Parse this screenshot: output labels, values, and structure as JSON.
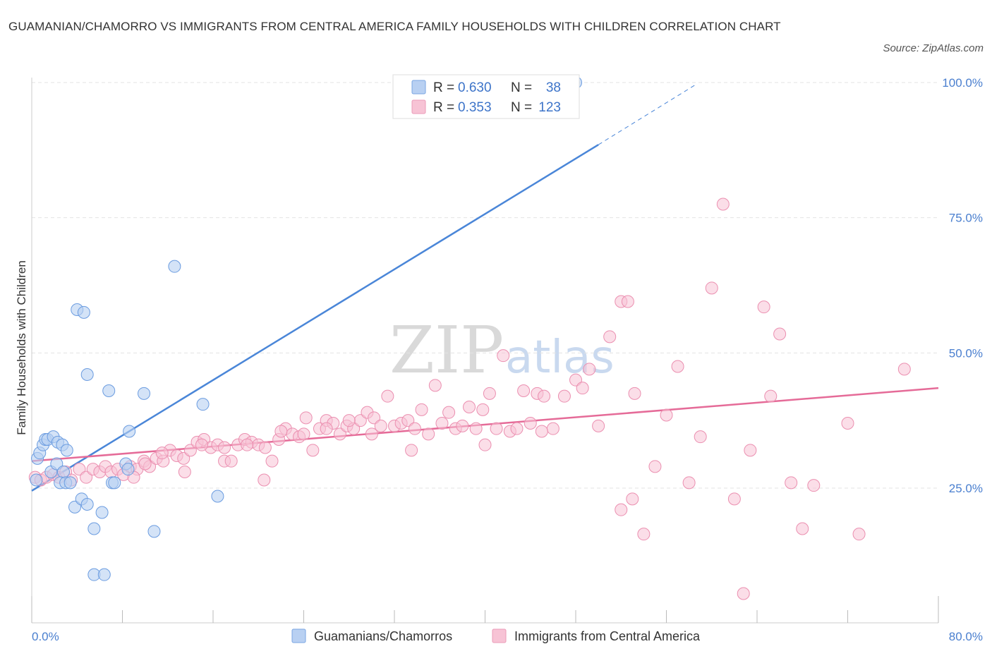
{
  "title": "GUAMANIAN/CHAMORRO VS IMMIGRANTS FROM CENTRAL AMERICA FAMILY HOUSEHOLDS WITH CHILDREN CORRELATION CHART",
  "source": "Source: ZipAtlas.com",
  "watermark": {
    "zip": "ZIP",
    "atlas": "atlas"
  },
  "colors": {
    "blue": "#4a86d8",
    "blue_fill": "#b8d0f2",
    "pink": "#e56b98",
    "pink_fill": "#f7c3d5",
    "axis_text": "#4a7fcf",
    "grid": "#e3e3e3"
  },
  "legend": {
    "r_label": "R =",
    "n_label": "N =",
    "series": [
      {
        "r": "0.630",
        "n": "38"
      },
      {
        "r": "0.353",
        "n": "123"
      }
    ]
  },
  "bottom_legend": [
    "Guamanians/Chamorros",
    "Immigrants from Central America"
  ],
  "chart_data": {
    "type": "scatter",
    "title": "GUAMANIAN/CHAMORRO VS IMMIGRANTS FROM CENTRAL AMERICA FAMILY HOUSEHOLDS WITH CHILDREN CORRELATION CHART",
    "xlabel": "",
    "ylabel": "Family Households with Children",
    "xlim": [
      0,
      80
    ],
    "ylim": [
      0,
      102
    ],
    "x_tick_labels": [
      "0.0%",
      "80.0%"
    ],
    "y_ticks": [
      25,
      50,
      75,
      100
    ],
    "y_tick_labels": [
      "25.0%",
      "50.0%",
      "75.0%",
      "100.0%"
    ],
    "series": [
      {
        "name": "Guamanians/Chamorros",
        "R": 0.63,
        "N": 38,
        "trend": {
          "x0": 0,
          "y0": 24.5,
          "x1": 50,
          "y1": 88.5,
          "dash_x1": 58.5,
          "dash_y1": 99.5
        },
        "points": [
          [
            0.5,
            30.5
          ],
          [
            0.7,
            31.5
          ],
          [
            0.4,
            26.5
          ],
          [
            1.0,
            33.0
          ],
          [
            1.2,
            34.0
          ],
          [
            1.4,
            34.0
          ],
          [
            1.9,
            34.5
          ],
          [
            2.3,
            33.5
          ],
          [
            2.7,
            33.0
          ],
          [
            3.1,
            32.0
          ],
          [
            1.7,
            28.0
          ],
          [
            2.2,
            29.5
          ],
          [
            2.8,
            28.0
          ],
          [
            2.5,
            26.0
          ],
          [
            3.0,
            26.0
          ],
          [
            3.4,
            26.0
          ],
          [
            3.8,
            21.5
          ],
          [
            4.4,
            23.0
          ],
          [
            4.9,
            22.0
          ],
          [
            6.2,
            20.5
          ],
          [
            5.5,
            17.5
          ],
          [
            4.0,
            58.0
          ],
          [
            4.6,
            57.5
          ],
          [
            4.9,
            46.0
          ],
          [
            6.8,
            43.0
          ],
          [
            7.1,
            26.0
          ],
          [
            7.3,
            26.0
          ],
          [
            8.3,
            29.5
          ],
          [
            8.5,
            28.5
          ],
          [
            8.6,
            35.5
          ],
          [
            9.9,
            42.5
          ],
          [
            12.6,
            66.0
          ],
          [
            10.8,
            17.0
          ],
          [
            15.1,
            40.5
          ],
          [
            16.4,
            23.5
          ],
          [
            5.5,
            9.0
          ],
          [
            6.4,
            9.0
          ],
          [
            48.0,
            100.0
          ]
        ]
      },
      {
        "name": "Immigrants from Central America",
        "R": 0.353,
        "N": 123,
        "trend": {
          "x0": 0,
          "y0": 30.0,
          "x1": 80,
          "y1": 43.5
        },
        "points": [
          [
            0.3,
            27.0
          ],
          [
            0.8,
            26.5
          ],
          [
            1.3,
            27.0
          ],
          [
            1.9,
            27.5
          ],
          [
            2.4,
            27.0
          ],
          [
            3.0,
            28.0
          ],
          [
            3.5,
            26.5
          ],
          [
            4.2,
            28.5
          ],
          [
            4.8,
            27.0
          ],
          [
            5.4,
            28.5
          ],
          [
            6.0,
            28.0
          ],
          [
            6.5,
            29.0
          ],
          [
            7.0,
            28.0
          ],
          [
            7.6,
            28.5
          ],
          [
            8.1,
            27.5
          ],
          [
            8.7,
            29.0
          ],
          [
            9.3,
            28.5
          ],
          [
            9.9,
            30.0
          ],
          [
            10.4,
            29.0
          ],
          [
            11.0,
            30.5
          ],
          [
            11.6,
            30.0
          ],
          [
            12.2,
            32.0
          ],
          [
            12.8,
            31.0
          ],
          [
            13.4,
            30.5
          ],
          [
            14.0,
            32.0
          ],
          [
            14.6,
            33.5
          ],
          [
            15.2,
            34.0
          ],
          [
            15.8,
            32.5
          ],
          [
            16.4,
            33.0
          ],
          [
            17.0,
            30.0
          ],
          [
            17.6,
            30.0
          ],
          [
            18.2,
            33.0
          ],
          [
            18.8,
            34.0
          ],
          [
            19.4,
            33.5
          ],
          [
            20.0,
            33.0
          ],
          [
            20.6,
            32.5
          ],
          [
            21.2,
            30.0
          ],
          [
            21.8,
            34.0
          ],
          [
            22.4,
            36.0
          ],
          [
            23.0,
            35.0
          ],
          [
            23.6,
            34.5
          ],
          [
            24.2,
            38.0
          ],
          [
            24.8,
            32.0
          ],
          [
            25.4,
            36.0
          ],
          [
            26.0,
            37.5
          ],
          [
            26.6,
            37.0
          ],
          [
            27.2,
            35.0
          ],
          [
            27.8,
            36.5
          ],
          [
            28.4,
            36.0
          ],
          [
            29.0,
            37.5
          ],
          [
            29.6,
            39.0
          ],
          [
            30.2,
            38.0
          ],
          [
            30.8,
            36.5
          ],
          [
            31.4,
            42.0
          ],
          [
            32.0,
            36.5
          ],
          [
            32.6,
            37.0
          ],
          [
            33.2,
            37.5
          ],
          [
            33.8,
            36.0
          ],
          [
            34.4,
            39.5
          ],
          [
            35.0,
            35.0
          ],
          [
            35.6,
            44.0
          ],
          [
            36.2,
            37.0
          ],
          [
            36.8,
            39.0
          ],
          [
            37.4,
            36.0
          ],
          [
            38.0,
            36.5
          ],
          [
            38.6,
            40.0
          ],
          [
            39.2,
            36.0
          ],
          [
            39.8,
            39.5
          ],
          [
            40.4,
            42.5
          ],
          [
            41.0,
            36.0
          ],
          [
            41.6,
            49.5
          ],
          [
            42.2,
            35.5
          ],
          [
            42.8,
            36.0
          ],
          [
            43.4,
            43.0
          ],
          [
            44.0,
            37.0
          ],
          [
            44.6,
            42.5
          ],
          [
            45.2,
            42.0
          ],
          [
            46.0,
            36.0
          ],
          [
            47.0,
            42.0
          ],
          [
            48.0,
            45.0
          ],
          [
            48.6,
            43.5
          ],
          [
            49.2,
            47.0
          ],
          [
            50.0,
            36.5
          ],
          [
            51.0,
            53.0
          ],
          [
            52.0,
            59.5
          ],
          [
            52.6,
            59.5
          ],
          [
            53.2,
            42.5
          ],
          [
            54.0,
            16.5
          ],
          [
            55.0,
            29.0
          ],
          [
            56.0,
            38.5
          ],
          [
            57.0,
            47.5
          ],
          [
            58.0,
            26.0
          ],
          [
            59.0,
            34.5
          ],
          [
            60.0,
            62.0
          ],
          [
            61.0,
            77.5
          ],
          [
            62.0,
            23.0
          ],
          [
            62.8,
            5.5
          ],
          [
            63.4,
            32.0
          ],
          [
            64.6,
            58.5
          ],
          [
            65.2,
            42.0
          ],
          [
            66.0,
            53.5
          ],
          [
            67.0,
            26.0
          ],
          [
            68.0,
            17.5
          ],
          [
            69.0,
            25.5
          ],
          [
            72.0,
            37.0
          ],
          [
            73.0,
            16.5
          ],
          [
            77.0,
            47.0
          ],
          [
            20.5,
            26.5
          ],
          [
            13.5,
            28.0
          ],
          [
            9.0,
            27.0
          ],
          [
            52.0,
            21.0
          ],
          [
            53.0,
            23.0
          ],
          [
            45.0,
            35.5
          ],
          [
            40.0,
            33.0
          ],
          [
            33.5,
            32.0
          ],
          [
            30.0,
            35.0
          ],
          [
            28.0,
            37.5
          ],
          [
            26.0,
            36.0
          ],
          [
            24.0,
            35.0
          ],
          [
            22.0,
            35.5
          ],
          [
            19.0,
            33.0
          ],
          [
            17.0,
            32.5
          ],
          [
            15.0,
            33.0
          ],
          [
            11.5,
            31.5
          ],
          [
            10.0,
            29.5
          ]
        ]
      }
    ]
  }
}
